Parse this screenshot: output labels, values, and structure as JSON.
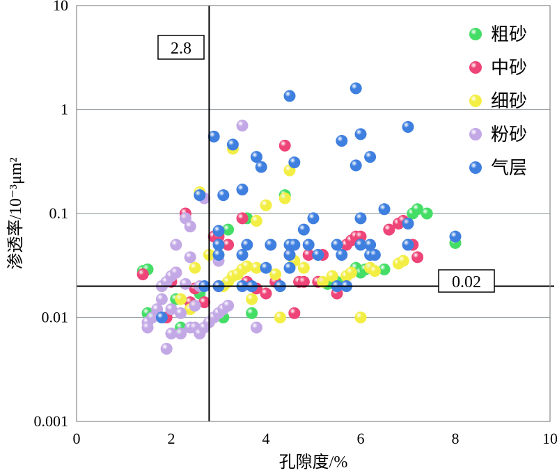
{
  "chart_data": {
    "type": "scatter",
    "xlabel": "孔隙度/%",
    "ylabel": "渗透率/10⁻³μm²",
    "xlim": [
      0,
      10
    ],
    "ylim": [
      0.001,
      10
    ],
    "y_scale": "log",
    "x_ticks": [
      "0",
      "2",
      "4",
      "6",
      "8",
      "10"
    ],
    "y_ticks": [
      "0.001",
      "0.01",
      "0.1",
      "1",
      "10"
    ],
    "y_grid": true,
    "legend_position": "top-right",
    "cutoffs": {
      "porosity": {
        "value": 2.8,
        "label": "2.8"
      },
      "permeability": {
        "value": 0.02,
        "label": "0.02"
      }
    },
    "series": [
      {
        "name": "粗砂",
        "color": "#44dd66",
        "points": [
          [
            1.4,
            0.028
          ],
          [
            1.5,
            0.029
          ],
          [
            1.5,
            0.011
          ],
          [
            2.1,
            0.015
          ],
          [
            2.2,
            0.008
          ],
          [
            2.6,
            0.017
          ],
          [
            3.1,
            0.01
          ],
          [
            3.2,
            0.07
          ],
          [
            3.6,
            0.09
          ],
          [
            3.7,
            0.011
          ],
          [
            4.4,
            0.15
          ],
          [
            5.3,
            0.021
          ],
          [
            5.5,
            0.022
          ],
          [
            5.9,
            0.03
          ],
          [
            6.0,
            0.027
          ],
          [
            6.1,
            0.029
          ],
          [
            6.5,
            0.029
          ],
          [
            7.1,
            0.1
          ],
          [
            7.2,
            0.11
          ],
          [
            7.4,
            0.1
          ],
          [
            8.0,
            0.052
          ]
        ]
      },
      {
        "name": "中砂",
        "color": "#ee4477",
        "points": [
          [
            1.4,
            0.026
          ],
          [
            1.9,
            0.01
          ],
          [
            2.0,
            0.022
          ],
          [
            2.1,
            0.027
          ],
          [
            2.3,
            0.1
          ],
          [
            2.4,
            0.014
          ],
          [
            2.5,
            0.019
          ],
          [
            2.7,
            0.014
          ],
          [
            2.9,
            0.06
          ],
          [
            3.0,
            0.02
          ],
          [
            3.0,
            0.06
          ],
          [
            3.2,
            0.05
          ],
          [
            3.5,
            0.09
          ],
          [
            3.6,
            0.022
          ],
          [
            3.8,
            0.019
          ],
          [
            4.0,
            0.017
          ],
          [
            4.2,
            0.022
          ],
          [
            4.4,
            0.45
          ],
          [
            4.5,
            0.04
          ],
          [
            4.6,
            0.011
          ],
          [
            4.7,
            0.022
          ],
          [
            4.8,
            0.022
          ],
          [
            4.9,
            0.04
          ],
          [
            5.1,
            0.022
          ],
          [
            5.2,
            0.04
          ],
          [
            5.5,
            0.017
          ],
          [
            5.7,
            0.05
          ],
          [
            5.8,
            0.055
          ],
          [
            5.9,
            0.06
          ],
          [
            6.0,
            0.06
          ],
          [
            6.6,
            0.07
          ],
          [
            6.8,
            0.08
          ],
          [
            6.9,
            0.085
          ],
          [
            7.1,
            0.05
          ],
          [
            7.2,
            0.038
          ]
        ]
      },
      {
        "name": "细砂",
        "color": "#f3ee44",
        "points": [
          [
            2.2,
            0.015
          ],
          [
            2.4,
            0.012
          ],
          [
            2.5,
            0.03
          ],
          [
            2.6,
            0.16
          ],
          [
            2.8,
            0.04
          ],
          [
            3.0,
            0.04
          ],
          [
            3.1,
            0.02
          ],
          [
            3.2,
            0.022
          ],
          [
            3.3,
            0.025
          ],
          [
            3.3,
            0.42
          ],
          [
            3.4,
            0.026
          ],
          [
            3.5,
            0.029
          ],
          [
            3.6,
            0.031
          ],
          [
            3.7,
            0.015
          ],
          [
            3.8,
            0.03
          ],
          [
            3.8,
            0.085
          ],
          [
            4.0,
            0.12
          ],
          [
            4.2,
            0.026
          ],
          [
            4.3,
            0.01
          ],
          [
            4.4,
            0.14
          ],
          [
            4.5,
            0.26
          ],
          [
            4.6,
            0.035
          ],
          [
            4.8,
            0.03
          ],
          [
            5.2,
            0.022
          ],
          [
            5.4,
            0.025
          ],
          [
            5.7,
            0.025
          ],
          [
            5.8,
            0.027
          ],
          [
            6.0,
            0.01
          ],
          [
            6.2,
            0.03
          ],
          [
            6.3,
            0.028
          ],
          [
            6.8,
            0.033
          ],
          [
            6.9,
            0.035
          ]
        ]
      },
      {
        "name": "粉砂",
        "color": "#c3a8e6",
        "points": [
          [
            1.5,
            0.009
          ],
          [
            1.5,
            0.008
          ],
          [
            1.6,
            0.01
          ],
          [
            1.7,
            0.012
          ],
          [
            1.8,
            0.015
          ],
          [
            1.8,
            0.02
          ],
          [
            1.9,
            0.022
          ],
          [
            1.9,
            0.005
          ],
          [
            2.0,
            0.025
          ],
          [
            2.0,
            0.007
          ],
          [
            2.0,
            0.012
          ],
          [
            2.1,
            0.027
          ],
          [
            2.1,
            0.05
          ],
          [
            2.2,
            0.007
          ],
          [
            2.2,
            0.011
          ],
          [
            2.3,
            0.021
          ],
          [
            2.3,
            0.09
          ],
          [
            2.4,
            0.075
          ],
          [
            2.4,
            0.008
          ],
          [
            2.4,
            0.038
          ],
          [
            2.5,
            0.008
          ],
          [
            2.5,
            0.013
          ],
          [
            2.6,
            0.02
          ],
          [
            2.6,
            0.007
          ],
          [
            2.7,
            0.008
          ],
          [
            2.8,
            0.009
          ],
          [
            2.9,
            0.01
          ],
          [
            3.0,
            0.011
          ],
          [
            3.1,
            0.012
          ],
          [
            3.2,
            0.013
          ],
          [
            3.5,
            0.7
          ],
          [
            3.8,
            0.008
          ],
          [
            3.0,
            0.035
          ],
          [
            2.7,
            0.14
          ]
        ]
      },
      {
        "name": "气层",
        "color": "#3e7fdf",
        "points": [
          [
            1.8,
            0.01
          ],
          [
            2.7,
            0.02
          ],
          [
            2.6,
            0.15
          ],
          [
            2.9,
            0.55
          ],
          [
            3.0,
            0.05
          ],
          [
            3.0,
            0.04
          ],
          [
            3.0,
            0.02
          ],
          [
            3.0,
            0.068
          ],
          [
            3.1,
            0.15
          ],
          [
            3.3,
            0.46
          ],
          [
            3.5,
            0.17
          ],
          [
            3.5,
            0.04
          ],
          [
            3.6,
            0.05
          ],
          [
            3.5,
            0.02
          ],
          [
            3.7,
            0.02
          ],
          [
            3.8,
            0.35
          ],
          [
            3.9,
            0.28
          ],
          [
            4.0,
            0.03
          ],
          [
            4.1,
            0.05
          ],
          [
            4.3,
            0.02
          ],
          [
            4.5,
            1.35
          ],
          [
            4.5,
            0.05
          ],
          [
            4.5,
            0.04
          ],
          [
            4.5,
            0.03
          ],
          [
            4.6,
            0.31
          ],
          [
            4.6,
            0.05
          ],
          [
            4.8,
            0.07
          ],
          [
            4.9,
            0.05
          ],
          [
            5.0,
            0.09
          ],
          [
            5.1,
            0.04
          ],
          [
            5.5,
            0.05
          ],
          [
            5.5,
            0.02
          ],
          [
            5.6,
            0.04
          ],
          [
            5.6,
            0.5
          ],
          [
            5.7,
            0.02
          ],
          [
            5.9,
            1.6
          ],
          [
            5.9,
            0.29
          ],
          [
            6.0,
            0.58
          ],
          [
            6.0,
            0.09
          ],
          [
            6.0,
            0.05
          ],
          [
            6.2,
            0.04
          ],
          [
            6.2,
            0.05
          ],
          [
            6.2,
            0.35
          ],
          [
            6.3,
            0.04
          ],
          [
            6.5,
            0.11
          ],
          [
            7.0,
            0.68
          ],
          [
            7.0,
            0.08
          ],
          [
            7.0,
            0.05
          ],
          [
            8.0,
            0.06
          ]
        ]
      }
    ]
  }
}
